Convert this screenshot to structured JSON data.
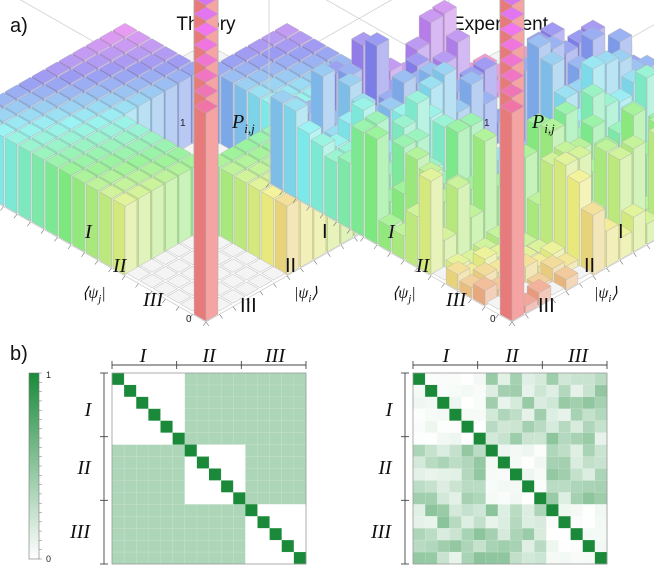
{
  "panel_labels": {
    "a": "a)",
    "b": "b)"
  },
  "colors": {
    "matrix_green": "#1a8a3a",
    "wall_red": "#ee8f8f",
    "box_edge": "#d8d8d8"
  },
  "chart_data": [
    {
      "type": "bar3d",
      "title": "Theory",
      "z_label": "P_{i,j}",
      "z_ticks": [
        "0",
        "1"
      ],
      "zlim": [
        0,
        1
      ],
      "row_axis_label": "⟨ψ_j|",
      "col_axis_label": "|ψ_i⟩",
      "block_labels": [
        "I",
        "II",
        "III"
      ],
      "n": 18,
      "diagonal_value": 1,
      "offdiag_same_block": 0,
      "offdiag_different_block": 0.33
    },
    {
      "type": "bar3d",
      "title": "Experiment",
      "z_label": "P_{i,j}",
      "z_ticks": [
        "0",
        "1"
      ],
      "zlim": [
        0,
        1
      ],
      "row_axis_label": "⟨ψ_j|",
      "col_axis_label": "|ψ_i⟩",
      "block_labels": [
        "I",
        "II",
        "III"
      ],
      "n": 18,
      "diagonal_value": 1,
      "offdiag_mean_different_block": 0.3,
      "offdiag_mean_same_block": 0.04
    },
    {
      "type": "heatmap",
      "title": "",
      "colorbar_ticks": [
        "0",
        "1"
      ],
      "clim": [
        0,
        1
      ],
      "block_labels": [
        "I",
        "II",
        "III"
      ],
      "n": 16,
      "diagonal_value": 1,
      "offdiag_same_block": 0,
      "offdiag_different_block": 0.33
    },
    {
      "type": "heatmap",
      "title": "",
      "block_labels": [
        "I",
        "II",
        "III"
      ],
      "n": 16,
      "diagonal_value": 1,
      "offdiag_mean_different_block": 0.3,
      "offdiag_mean_same_block": 0.04
    }
  ]
}
